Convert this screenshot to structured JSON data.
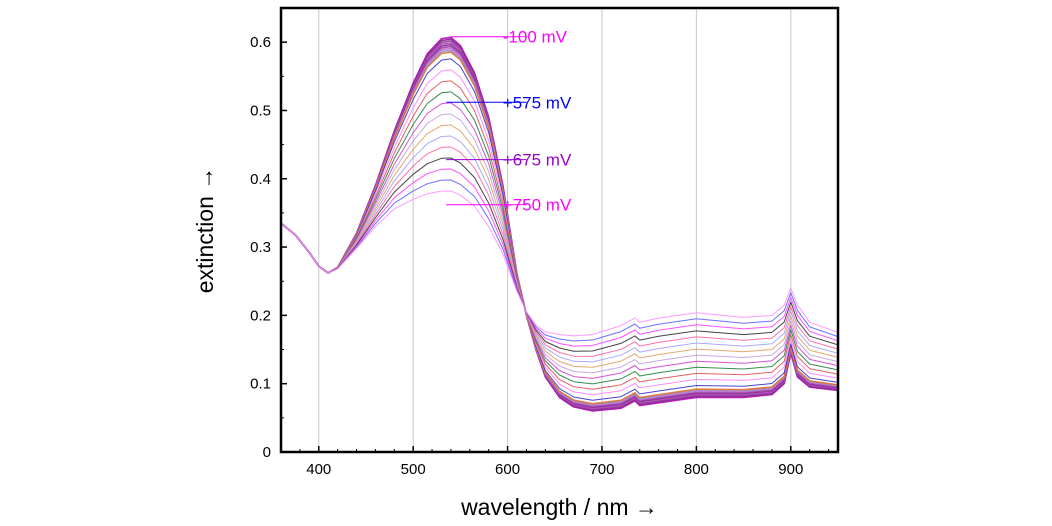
{
  "chart_data": {
    "type": "line",
    "xlabel": "wavelength / nm →",
    "ylabel": "extinction →",
    "xlim": [
      360,
      950
    ],
    "ylim": [
      0,
      0.65
    ],
    "x_ticks": [
      400,
      500,
      600,
      700,
      800,
      900
    ],
    "x_tick_labels": [
      "400",
      "500",
      "600",
      "700",
      "800",
      "900"
    ],
    "y_ticks": [
      0,
      0.1,
      0.2,
      0.3,
      0.4,
      0.5,
      0.6
    ],
    "y_tick_labels": [
      "0",
      "0.1",
      "0.2",
      "0.3",
      "0.4",
      "0.5",
      "0.6"
    ],
    "grid": "vertical",
    "series_count": 22,
    "series_colors": [
      "#c000c0",
      "#7a2a8a",
      "#9a3aa0",
      "#b050b8",
      "#8a2a9a",
      "#a040a8",
      "#c070c8",
      "#9090e0",
      "#e07030",
      "#3030d0",
      "#ff80ff",
      "#e05050",
      "#208040",
      "#d040d0",
      "#c0a0e0",
      "#e0a060",
      "#a0a0ff",
      "#ff60a0",
      "#303030",
      "#ff40ff",
      "#6060ff",
      "#ff90ff"
    ],
    "profile_peak": [
      [
        360,
        0.335
      ],
      [
        375,
        0.318
      ],
      [
        390,
        0.292
      ],
      [
        400,
        0.272
      ],
      [
        410,
        0.262
      ],
      [
        420,
        0.27
      ],
      [
        440,
        0.32
      ],
      [
        460,
        0.39
      ],
      [
        480,
        0.47
      ],
      [
        500,
        0.54
      ],
      [
        515,
        0.583
      ],
      [
        530,
        0.605
      ],
      [
        540,
        0.607
      ],
      [
        550,
        0.595
      ],
      [
        565,
        0.555
      ],
      [
        580,
        0.49
      ],
      [
        595,
        0.39
      ],
      [
        610,
        0.26
      ],
      [
        620,
        0.2
      ],
      [
        630,
        0.15
      ],
      [
        640,
        0.11
      ],
      [
        655,
        0.08
      ],
      [
        670,
        0.066
      ],
      [
        690,
        0.06
      ],
      [
        720,
        0.064
      ],
      [
        735,
        0.075
      ],
      [
        740,
        0.068
      ],
      [
        760,
        0.072
      ],
      [
        800,
        0.08
      ],
      [
        850,
        0.08
      ],
      [
        880,
        0.084
      ],
      [
        893,
        0.1
      ],
      [
        900,
        0.145
      ],
      [
        907,
        0.11
      ],
      [
        920,
        0.095
      ],
      [
        950,
        0.09
      ]
    ],
    "profile_flat": [
      [
        360,
        0.335
      ],
      [
        375,
        0.318
      ],
      [
        390,
        0.292
      ],
      [
        400,
        0.272
      ],
      [
        410,
        0.262
      ],
      [
        420,
        0.268
      ],
      [
        440,
        0.298
      ],
      [
        460,
        0.33
      ],
      [
        480,
        0.356
      ],
      [
        500,
        0.37
      ],
      [
        515,
        0.378
      ],
      [
        530,
        0.382
      ],
      [
        540,
        0.382
      ],
      [
        550,
        0.376
      ],
      [
        565,
        0.36
      ],
      [
        580,
        0.33
      ],
      [
        595,
        0.29
      ],
      [
        610,
        0.235
      ],
      [
        620,
        0.205
      ],
      [
        630,
        0.186
      ],
      [
        640,
        0.176
      ],
      [
        655,
        0.172
      ],
      [
        670,
        0.17
      ],
      [
        690,
        0.172
      ],
      [
        720,
        0.185
      ],
      [
        735,
        0.196
      ],
      [
        740,
        0.19
      ],
      [
        760,
        0.196
      ],
      [
        800,
        0.204
      ],
      [
        850,
        0.197
      ],
      [
        880,
        0.2
      ],
      [
        893,
        0.215
      ],
      [
        900,
        0.24
      ],
      [
        907,
        0.215
      ],
      [
        920,
        0.19
      ],
      [
        950,
        0.175
      ]
    ],
    "annotations": [
      {
        "text": "-100 mV",
        "color": "#ff00ff",
        "x": 650,
        "y": 0.608,
        "point_x": 540,
        "point_y": 0.608
      },
      {
        "text": "+575 mV",
        "color": "#0000ff",
        "x": 650,
        "y": 0.512,
        "point_x": 535,
        "point_y": 0.512
      },
      {
        "text": "+675 mV",
        "color": "#9900cc",
        "x": 650,
        "y": 0.428,
        "point_x": 535,
        "point_y": 0.428
      },
      {
        "text": "+750 mV",
        "color": "#ff00ff",
        "x": 650,
        "y": 0.362,
        "point_x": 535,
        "point_y": 0.362
      }
    ]
  }
}
